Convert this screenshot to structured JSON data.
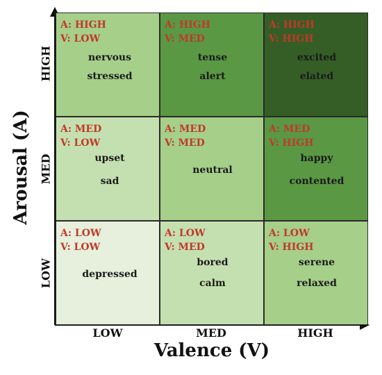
{
  "axes": {
    "xlabel": "Valence (V)",
    "ylabel": "Arousal (A)",
    "xticks": [
      "LOW",
      "MED",
      "HIGH"
    ],
    "yticks": [
      "LOW",
      "MED",
      "HIGH"
    ]
  },
  "colors": {
    "axis": "#111111",
    "tag_text": "#c0392b",
    "emotion_text": "#1a1a1a"
  },
  "cells": [
    {
      "arousal": "HIGH",
      "valence": "LOW",
      "tag_a": "A: HIGH",
      "tag_v": "V: LOW",
      "words": [
        "nervous",
        "stressed"
      ],
      "color": "#a6cf89"
    },
    {
      "arousal": "HIGH",
      "valence": "MED",
      "tag_a": "A: HIGH",
      "tag_v": "V: MED",
      "words": [
        "tense",
        "alert"
      ],
      "color": "#5a9844"
    },
    {
      "arousal": "HIGH",
      "valence": "HIGH",
      "tag_a": "A: HIGH",
      "tag_v": "V: HIGH",
      "words": [
        "excited",
        "elated"
      ],
      "color": "#355e26"
    },
    {
      "arousal": "MED",
      "valence": "LOW",
      "tag_a": "A: MED",
      "tag_v": "V: LOW",
      "words": [
        "upset",
        "sad"
      ],
      "color": "#c5e0b0"
    },
    {
      "arousal": "MED",
      "valence": "MED",
      "tag_a": "A: MED",
      "tag_v": "V: MED",
      "words": [
        "neutral"
      ],
      "color": "#a6cf89"
    },
    {
      "arousal": "MED",
      "valence": "HIGH",
      "tag_a": "A: MED",
      "tag_v": "V: HIGH",
      "words": [
        "happy",
        "contented"
      ],
      "color": "#5a9844"
    },
    {
      "arousal": "LOW",
      "valence": "LOW",
      "tag_a": "A: LOW",
      "tag_v": "V: LOW",
      "words": [
        "depressed"
      ],
      "color": "#e6f0dc"
    },
    {
      "arousal": "LOW",
      "valence": "MED",
      "tag_a": "A: LOW",
      "tag_v": "V: MED",
      "words": [
        "bored",
        "calm"
      ],
      "color": "#c5e0b0"
    },
    {
      "arousal": "LOW",
      "valence": "HIGH",
      "tag_a": "A: LOW",
      "tag_v": "V: HIGH",
      "words": [
        "serene",
        "relaxed"
      ],
      "color": "#a6cf89"
    }
  ]
}
